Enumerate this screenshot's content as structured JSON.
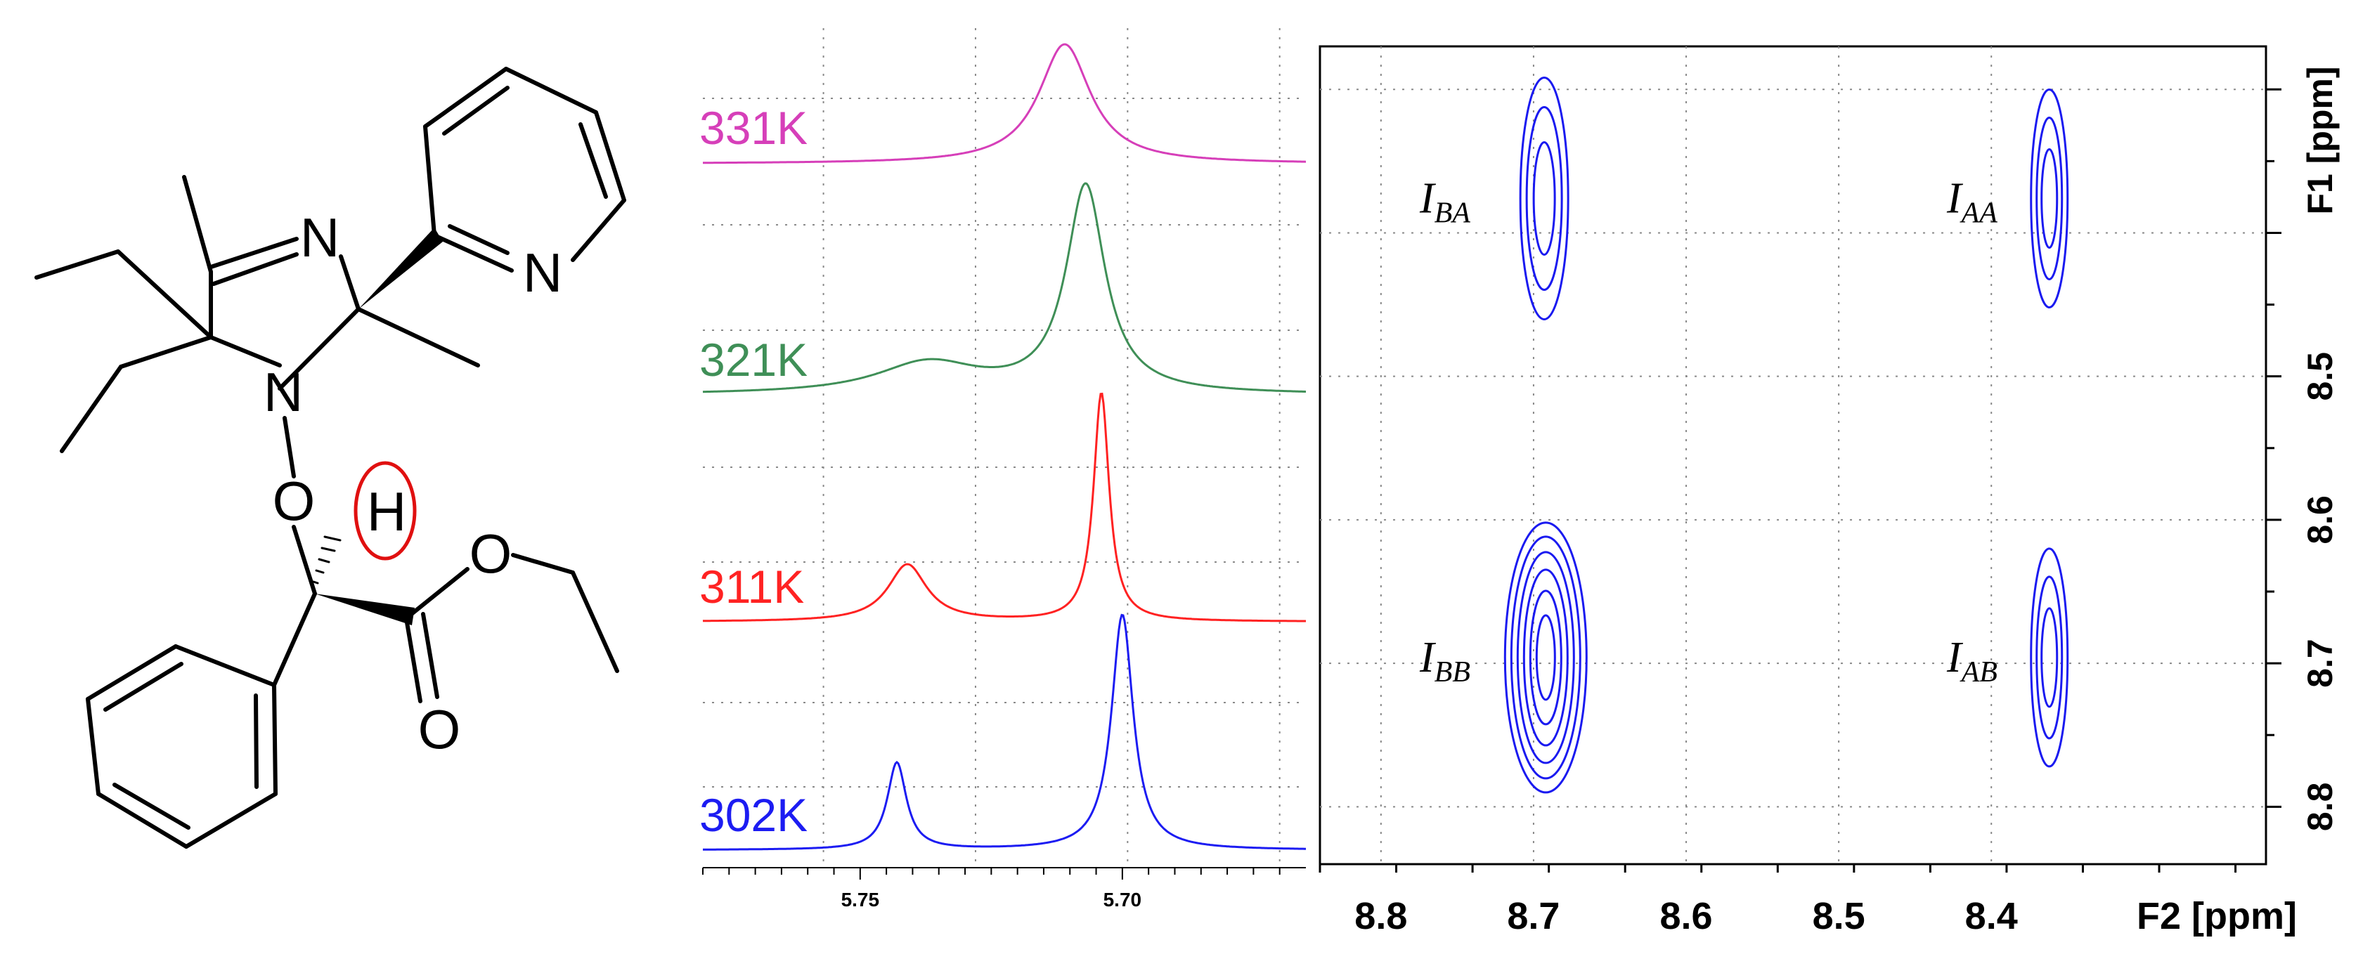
{
  "molecule": {
    "atoms": [
      "N",
      "N",
      "N",
      "O",
      "H",
      "O",
      "O"
    ]
  },
  "chart_data": [
    {
      "type": "line",
      "title": "",
      "xlabel": "",
      "ylabel": "",
      "xlim": [
        5.78,
        5.665
      ],
      "x_ticks": [
        "5.75",
        "5.70"
      ],
      "grid": true,
      "series": [
        {
          "name": "331K",
          "color": "#d63fb9",
          "peaks": [
            {
              "shift": 5.711,
              "height": 1.0,
              "width": 0.006
            }
          ]
        },
        {
          "name": "321K",
          "color": "#3f8f57",
          "peaks": [
            {
              "shift": 5.707,
              "height": 1.0,
              "width": 0.0045
            },
            {
              "shift": 5.737,
              "height": 0.15,
              "width": 0.012
            }
          ]
        },
        {
          "name": "311K",
          "color": "#ff2222",
          "peaks": [
            {
              "shift": 5.704,
              "height": 1.0,
              "width": 0.0018
            },
            {
              "shift": 5.741,
              "height": 0.25,
              "width": 0.0045
            }
          ]
        },
        {
          "name": "302K",
          "color": "#1c1cf2",
          "peaks": [
            {
              "shift": 5.7,
              "height": 1.0,
              "width": 0.0025
            },
            {
              "shift": 5.743,
              "height": 0.37,
              "width": 0.0022
            }
          ]
        }
      ]
    },
    {
      "type": "contour",
      "title": "",
      "xlabel": "F2 [ppm]",
      "ylabel": "F1 [ppm]",
      "xlim": [
        8.84,
        8.22
      ],
      "ylim": [
        8.27,
        8.84
      ],
      "x_ticks": [
        "8.8",
        "8.7",
        "8.6",
        "8.5",
        "8.4"
      ],
      "y_ticks": [
        "8.5",
        "8.6",
        "8.7",
        "8.8"
      ],
      "grid": true,
      "color": "#1a1af0",
      "peaks": [
        {
          "label_main": "I",
          "label_sub": "BA",
          "f2": 8.693,
          "f1": 8.376
        },
        {
          "label_main": "I",
          "label_sub": "AA",
          "f2": 8.362,
          "f1": 8.376
        },
        {
          "label_main": "I",
          "label_sub": "BB",
          "f2": 8.692,
          "f1": 8.696
        },
        {
          "label_main": "I",
          "label_sub": "AB",
          "f2": 8.362,
          "f1": 8.696
        }
      ]
    }
  ]
}
